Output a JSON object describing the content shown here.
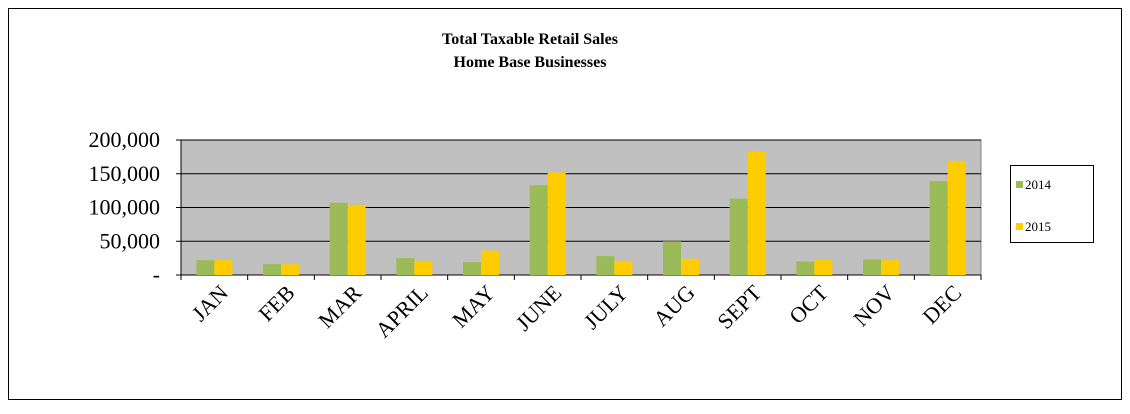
{
  "chart_data": {
    "type": "bar",
    "title": "Total Taxable Retail Sales",
    "subtitle": "Home Base Businesses",
    "categories": [
      "JAN",
      "FEB",
      "MAR",
      "APRIL",
      "MAY",
      "JUNE",
      "JULY",
      "AUG",
      "SEPT",
      "OCT",
      "NOV",
      "DEC"
    ],
    "series": [
      {
        "name": "2014",
        "color": "#9bbb59",
        "values": [
          22000,
          16000,
          107000,
          25000,
          19000,
          133000,
          28000,
          50000,
          113000,
          20000,
          23000,
          139000
        ]
      },
      {
        "name": "2015",
        "color": "#ffcc00",
        "values": [
          22000,
          16000,
          104000,
          21000,
          36000,
          152000,
          21000,
          24000,
          183000,
          22000,
          22000,
          169000
        ]
      }
    ],
    "ylim": [
      0,
      200000
    ],
    "yticks": [
      {
        "value": 0,
        "label": "-"
      },
      {
        "value": 50000,
        "label": "50,000"
      },
      {
        "value": 100000,
        "label": "100,000"
      },
      {
        "value": 150000,
        "label": "150,000"
      },
      {
        "value": 200000,
        "label": "200,000"
      }
    ],
    "grid": true,
    "legend": "right"
  }
}
